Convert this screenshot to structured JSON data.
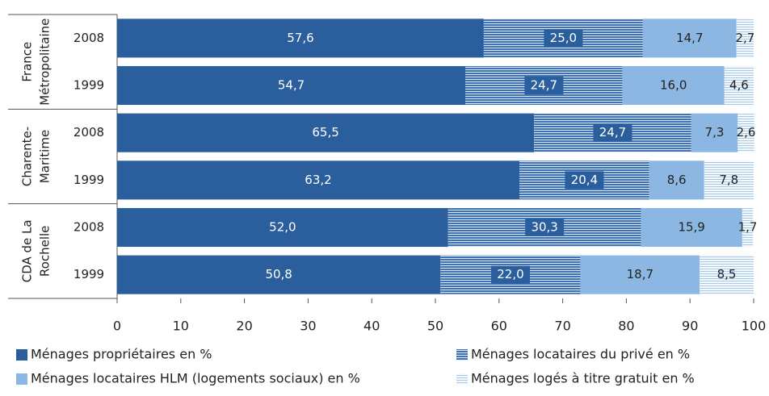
{
  "chart_data": {
    "type": "bar",
    "orientation": "horizontal",
    "stacked": true,
    "groups": [
      [
        "France",
        "Métropolitaine"
      ],
      [
        "Charente-",
        "Maritime"
      ],
      [
        "CDA de La",
        "Rochelle"
      ]
    ],
    "categories": [
      "2008",
      "1999",
      "2008",
      "1999",
      "2008",
      "1999"
    ],
    "series": [
      {
        "name": "Ménages propriétaires en %",
        "color": "#2b5e9c",
        "values": [
          57.6,
          54.7,
          65.5,
          63.2,
          52.0,
          50.8
        ],
        "value_labels": [
          "57,6",
          "54,7",
          "65,5",
          "63,2",
          "52,0",
          "50,8"
        ]
      },
      {
        "name": "Ménages locataires du privé en %",
        "color": "#3f72b4",
        "values": [
          25.0,
          24.7,
          24.7,
          20.4,
          30.3,
          22.0
        ],
        "value_labels": [
          "25,0",
          "24,7",
          "24,7",
          "20,4",
          "30,3",
          "22,0"
        ]
      },
      {
        "name": "Ménages locataires HLM (logements sociaux) en %",
        "color": "#8cb7e3",
        "values": [
          14.7,
          16.0,
          7.3,
          8.6,
          15.9,
          18.7
        ],
        "value_labels": [
          "14,7",
          "16,0",
          "7,3",
          "8,6",
          "15,9",
          "18,7"
        ]
      },
      {
        "name": "Ménages logés à titre gratuit en %",
        "color": "#c9def2",
        "values": [
          2.7,
          4.6,
          2.6,
          7.8,
          1.7,
          8.5
        ],
        "value_labels": [
          "2,7",
          "4,6",
          "2,6",
          "7,8",
          "1,7",
          "8,5"
        ]
      }
    ],
    "xlim": [
      0,
      100
    ],
    "xticks": [
      0,
      10,
      20,
      30,
      40,
      50,
      60,
      70,
      80,
      90,
      100
    ]
  }
}
